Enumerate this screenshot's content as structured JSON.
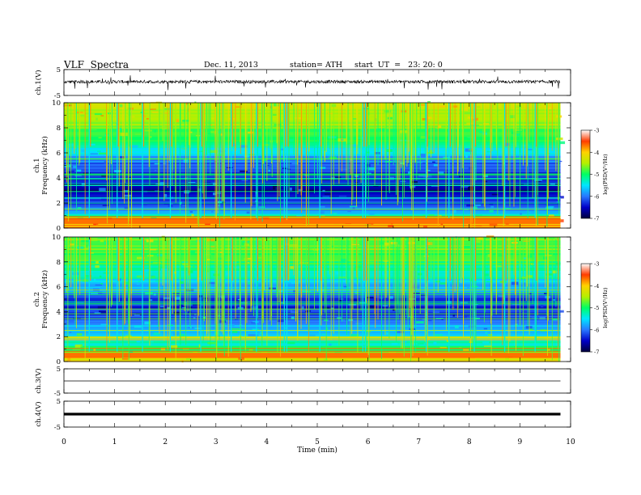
{
  "header": {
    "title": "VLF  Spectra",
    "date": "Dec. 11, 2013",
    "station": "station= ATH",
    "start": "start  UT  =   23: 20: 0"
  },
  "colors": {
    "colormap": [
      "#00003c",
      "#0000c8",
      "#2878ff",
      "#00e6ff",
      "#00ff64",
      "#b4f000",
      "#ffd200",
      "#ff3c00",
      "#ffffff"
    ],
    "trace": "#000000",
    "axis": "#000000"
  },
  "chart_data": [
    {
      "type": "line",
      "name": "ch1 waveform",
      "ylabel": "ch.1(V)",
      "ylim": [
        -5,
        5
      ],
      "yticks": [
        "5",
        "-5"
      ],
      "baseline_v": 0,
      "note_values": "noisy waveform around 0 V with sporadic spikes reaching about +/-3 V"
    },
    {
      "type": "heatmap",
      "name": "ch1 spectrogram",
      "ylabel_channel": "ch.1",
      "ylabel": "Frequency  (kHz)",
      "ylim_khz": [
        0,
        10
      ],
      "yticks": [
        "0",
        "2",
        "4",
        "6",
        "8",
        "10"
      ],
      "colorbar": {
        "label": "log(PSD(V²/Hz)",
        "range": [
          -7,
          -3
        ],
        "ticks": [
          "-3",
          "-4",
          "-5",
          "-6",
          "-7"
        ]
      },
      "background_level_by_khz": [
        [
          0,
          -3.4
        ],
        [
          0.6,
          -3.6
        ],
        [
          1.2,
          -5.6
        ],
        [
          2,
          -6.2
        ],
        [
          3,
          -6.6
        ],
        [
          4,
          -6.4
        ],
        [
          5,
          -6.0
        ],
        [
          6,
          -5.4
        ],
        [
          7,
          -4.8
        ],
        [
          8,
          -4.4
        ],
        [
          9,
          -4.1
        ],
        [
          10,
          -4.0
        ]
      ],
      "features": "horizontal narrowband lines below 6 kHz; strong red band near 0.5 kHz; broadband vertical sferic streaks reaching red above 6 kHz"
    },
    {
      "type": "heatmap",
      "name": "ch2 spectrogram",
      "ylabel_channel": "ch.2",
      "ylabel": "Frequency  (kHz)",
      "ylim_khz": [
        0,
        10
      ],
      "yticks": [
        "0",
        "2",
        "4",
        "6",
        "8",
        "10"
      ],
      "colorbar": {
        "label": "log(PSD(V²/Hz)",
        "range": [
          -7,
          -3
        ],
        "ticks": [
          "-3",
          "-4",
          "-5",
          "-6",
          "-7"
        ]
      },
      "background_level_by_khz": [
        [
          0,
          -3.6
        ],
        [
          0.6,
          -4.0
        ],
        [
          1.2,
          -4.9
        ],
        [
          2,
          -5.2
        ],
        [
          3,
          -5.7
        ],
        [
          4,
          -6.2
        ],
        [
          5,
          -6.1
        ],
        [
          6,
          -5.6
        ],
        [
          7,
          -5.0
        ],
        [
          8,
          -4.7
        ],
        [
          9,
          -4.4
        ],
        [
          10,
          -4.3
        ]
      ],
      "features": "horizontal narrowband lines; dark blue band 4-5 kHz; vertical sferic streaks"
    },
    {
      "type": "line",
      "name": "ch3 waveform",
      "ylabel": "ch.3(V)",
      "ylim": [
        -5,
        5
      ],
      "yticks": [
        "5",
        "-5"
      ],
      "baseline_v": 0
    },
    {
      "type": "line",
      "name": "ch4 waveform",
      "ylabel": "ch.4(V)",
      "ylim": [
        -5,
        5
      ],
      "yticks": [
        "5",
        "-5"
      ],
      "baseline_v": 0
    },
    {
      "type": "axis",
      "xlabel": "Time  (min)",
      "xlim": [
        0,
        10
      ],
      "xticks": [
        "0",
        "1",
        "2",
        "3",
        "4",
        "5",
        "6",
        "7",
        "8",
        "9",
        "10"
      ],
      "data_end_min": 9.8
    }
  ]
}
